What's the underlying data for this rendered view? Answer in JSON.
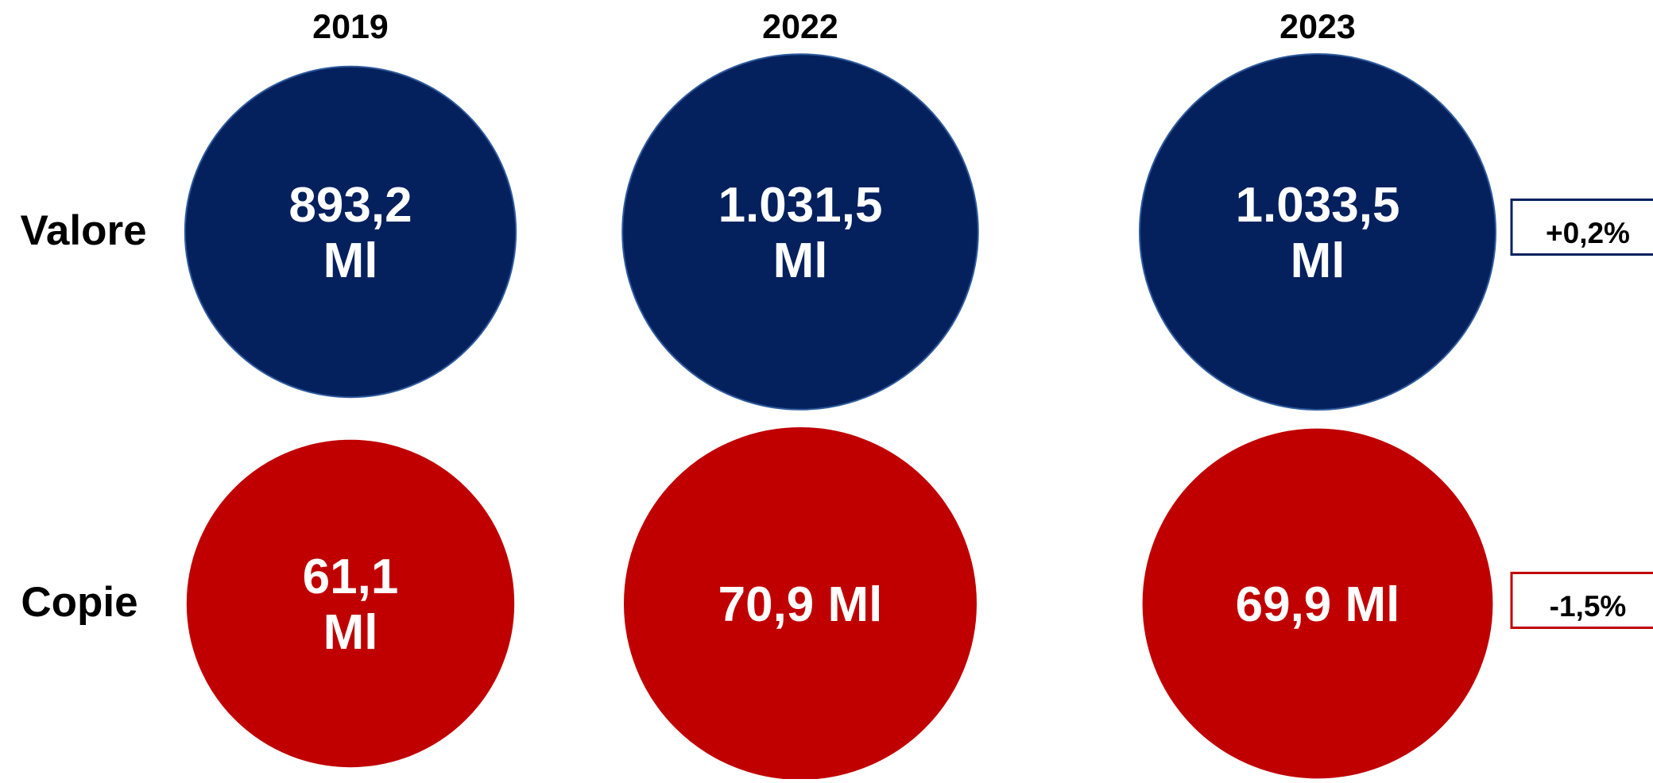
{
  "colors": {
    "valore": "#04215e",
    "copie": "#c00000",
    "bubble_text": "#ffffff",
    "label_text": "#000000"
  },
  "chart_data": {
    "type": "bubble",
    "categories": [
      "2019",
      "2022",
      "2023"
    ],
    "series": [
      {
        "name": "Valore",
        "values": [
          893.2,
          1031.5,
          1033.5
        ],
        "labels": [
          [
            "893,2",
            "Ml"
          ],
          [
            "1.031,5",
            "Ml"
          ],
          [
            "1.033,5",
            "Ml"
          ]
        ],
        "change": "+0,2%"
      },
      {
        "name": "Copie",
        "values": [
          61.1,
          70.9,
          69.9
        ],
        "labels": [
          [
            "61,1",
            "Ml"
          ],
          [
            "70,9 Ml"
          ],
          [
            "69,9 Ml"
          ]
        ],
        "change": "-1,5%"
      }
    ]
  }
}
